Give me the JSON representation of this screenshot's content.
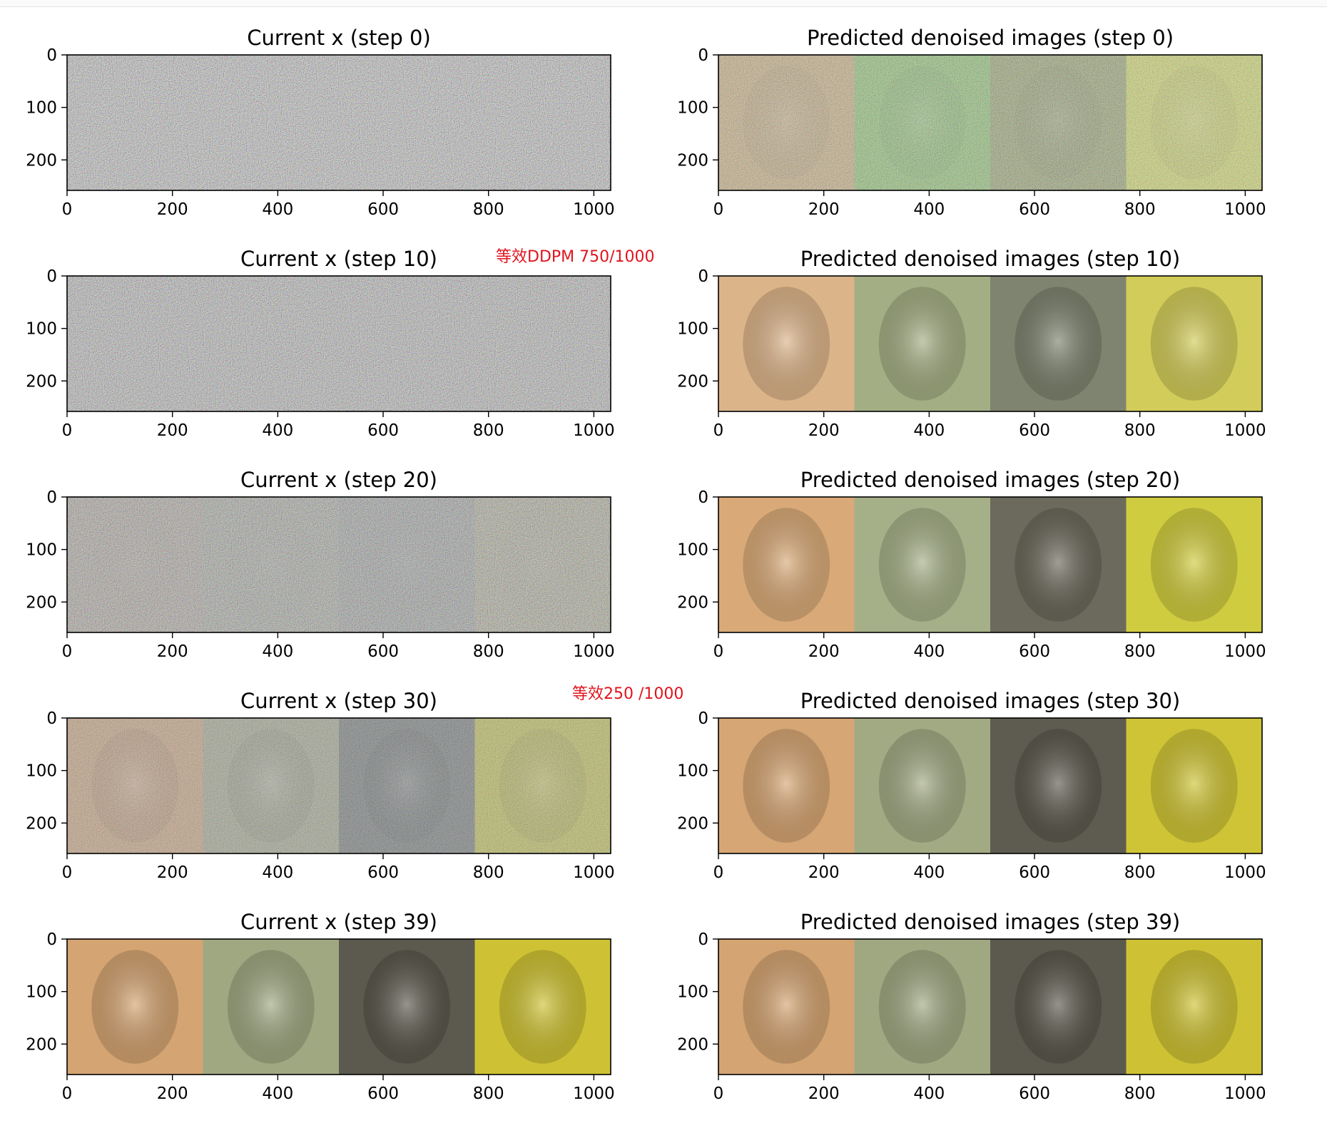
{
  "chart_data": [
    {
      "type": "image",
      "title": "Current x (step 0)",
      "xlim": [
        0,
        1032
      ],
      "ylim": [
        258,
        0
      ],
      "xticks": [
        0,
        200,
        400,
        600,
        800,
        1000
      ],
      "yticks": [
        0,
        100,
        200
      ],
      "panels": 4,
      "noise": 1.0,
      "panel_colors": [
        "#7a7a7a",
        "#7a7a7a",
        "#7a7a7a",
        "#7a7a7a"
      ]
    },
    {
      "type": "image",
      "title": "Predicted denoised images (step 0)",
      "xlim": [
        0,
        1032
      ],
      "ylim": [
        258,
        0
      ],
      "xticks": [
        0,
        200,
        400,
        600,
        800,
        1000
      ],
      "yticks": [
        0,
        100,
        200
      ],
      "panels": 4,
      "noise": 0.6,
      "panel_colors": [
        "#c9a86a",
        "#7fc35a",
        "#8a9a55",
        "#d4e04a"
      ]
    },
    {
      "type": "image",
      "title": "Current x (step 10)",
      "xlim": [
        0,
        1032
      ],
      "ylim": [
        258,
        0
      ],
      "xticks": [
        0,
        200,
        400,
        600,
        800,
        1000
      ],
      "yticks": [
        0,
        100,
        200
      ],
      "panels": 4,
      "noise": 0.95,
      "panel_colors": [
        "#7d7a78",
        "#7a7c78",
        "#7a7a7a",
        "#7c7c74"
      ]
    },
    {
      "type": "image",
      "title": "Predicted denoised images (step 10)",
      "xlim": [
        0,
        1032
      ],
      "ylim": [
        258,
        0
      ],
      "xticks": [
        0,
        200,
        400,
        600,
        800,
        1000
      ],
      "yticks": [
        0,
        100,
        200
      ],
      "panels": 4,
      "noise": 0.0,
      "panel_colors": [
        "#dcb48a",
        "#a4ae84",
        "#7e8470",
        "#d2cc5a"
      ]
    },
    {
      "type": "image",
      "title": "Current x (step 20)",
      "xlim": [
        0,
        1032
      ],
      "ylim": [
        258,
        0
      ],
      "xticks": [
        0,
        200,
        400,
        600,
        800,
        1000
      ],
      "yticks": [
        0,
        100,
        200
      ],
      "panels": 4,
      "noise": 0.8,
      "panel_colors": [
        "#8e8070",
        "#7e8474",
        "#6e7470",
        "#8e8c5e"
      ]
    },
    {
      "type": "image",
      "title": "Predicted denoised images (step 20)",
      "xlim": [
        0,
        1032
      ],
      "ylim": [
        258,
        0
      ],
      "xticks": [
        0,
        200,
        400,
        600,
        800,
        1000
      ],
      "yticks": [
        0,
        100,
        200
      ],
      "panels": 4,
      "noise": 0.0,
      "panel_colors": [
        "#d9aa78",
        "#a6b088",
        "#6c6a5c",
        "#d0cc40"
      ]
    },
    {
      "type": "image",
      "title": "Current x (step 30)",
      "xlim": [
        0,
        1032
      ],
      "ylim": [
        258,
        0
      ],
      "xticks": [
        0,
        200,
        400,
        600,
        800,
        1000
      ],
      "yticks": [
        0,
        100,
        200
      ],
      "panels": 4,
      "noise": 0.5,
      "panel_colors": [
        "#c29a74",
        "#9a9e86",
        "#6a7070",
        "#b8b848"
      ]
    },
    {
      "type": "image",
      "title": "Predicted denoised images (step 30)",
      "xlim": [
        0,
        1032
      ],
      "ylim": [
        258,
        0
      ],
      "xticks": [
        0,
        200,
        400,
        600,
        800,
        1000
      ],
      "yticks": [
        0,
        100,
        200
      ],
      "panels": 4,
      "noise": 0.0,
      "panel_colors": [
        "#d6a674",
        "#a2aa84",
        "#5e5c50",
        "#cfc436"
      ]
    },
    {
      "type": "image",
      "title": "Current x (step 39)",
      "xlim": [
        0,
        1032
      ],
      "ylim": [
        258,
        0
      ],
      "xticks": [
        0,
        200,
        400,
        600,
        800,
        1000
      ],
      "yticks": [
        0,
        100,
        200
      ],
      "panels": 4,
      "noise": 0.0,
      "panel_colors": [
        "#d4a472",
        "#a0a882",
        "#5c5a4e",
        "#cec234"
      ]
    },
    {
      "type": "image",
      "title": "Predicted denoised images (step 39)",
      "xlim": [
        0,
        1032
      ],
      "ylim": [
        258,
        0
      ],
      "xticks": [
        0,
        200,
        400,
        600,
        800,
        1000
      ],
      "yticks": [
        0,
        100,
        200
      ],
      "panels": 4,
      "noise": 0.0,
      "panel_colors": [
        "#d4a472",
        "#a0a882",
        "#5c5a4e",
        "#cec234"
      ]
    }
  ],
  "annotations": [
    {
      "text": "等效DDPM 750/1000",
      "color": "#e0141e"
    },
    {
      "text": "等效250  /1000",
      "color": "#e0141e"
    }
  ]
}
